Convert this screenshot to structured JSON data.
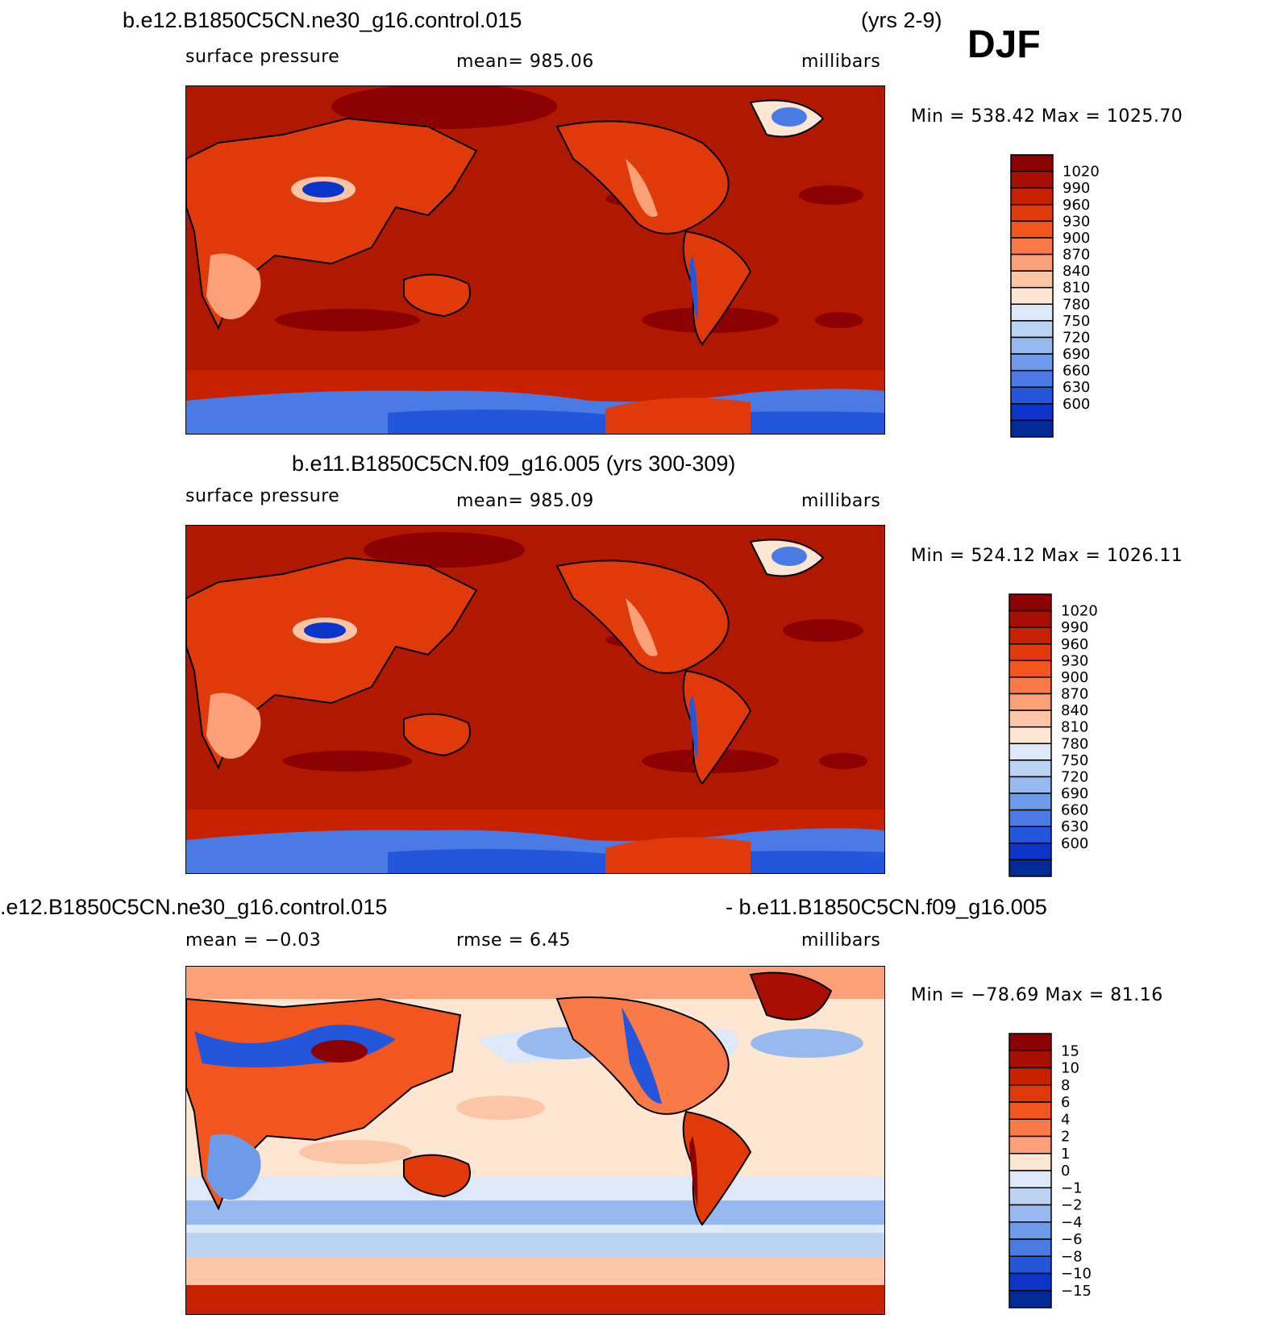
{
  "header": {
    "case1_title": "b.e12.B1850C5CN.ne30_g16.control.015",
    "case1_years": "(yrs 2-9)",
    "season": "DJF",
    "case2_title": "b.e11.B1850C5CN.f09_g16.005 (yrs 300-309)",
    "diff_title_left": ".e12.B1850C5CN.ne30_g16.control.015",
    "diff_title_right": "- b.e11.B1850C5CN.f09_g16.005"
  },
  "panels": [
    {
      "variable": "surface pressure",
      "mean": "mean= 985.06",
      "units": "millibars",
      "minmax": "Min = 538.42 Max = 1025.70"
    },
    {
      "variable": "surface pressure",
      "mean": "mean= 985.09",
      "units": "millibars",
      "minmax": "Min = 524.12 Max = 1026.11"
    },
    {
      "mean": "mean =   −0.03",
      "rmse": "rmse =    6.45",
      "units": "millibars",
      "minmax": "Min = −78.69 Max =  81.16"
    }
  ],
  "colorbars": {
    "pressure": {
      "levels": [
        "1020",
        "990",
        "960",
        "930",
        "900",
        "870",
        "840",
        "810",
        "780",
        "750",
        "720",
        "690",
        "660",
        "630",
        "600"
      ],
      "colors": [
        "#8b0000",
        "#a80f00",
        "#c72100",
        "#e03a0a",
        "#f2561e",
        "#f97a47",
        "#fba078",
        "#fcc6a6",
        "#fde6d2",
        "#dde9f8",
        "#bcd3f4",
        "#98b9ef",
        "#6e9aea",
        "#4a7be4",
        "#2456dc",
        "#0a35c8",
        "#002a96"
      ]
    },
    "difference": {
      "levels": [
        "15",
        "10",
        "8",
        "6",
        "4",
        "2",
        "1",
        "0",
        "−1",
        "−2",
        "−4",
        "−6",
        "−8",
        "−10",
        "−15"
      ],
      "colors": [
        "#8b0000",
        "#a80f00",
        "#c72100",
        "#e03a0a",
        "#f2561e",
        "#f97a47",
        "#fba078",
        "#fde6d2",
        "#dde9f8",
        "#bcd3f4",
        "#98b9ef",
        "#6e9aea",
        "#4a7be4",
        "#2456dc",
        "#0a35c8",
        "#002a96"
      ]
    }
  }
}
